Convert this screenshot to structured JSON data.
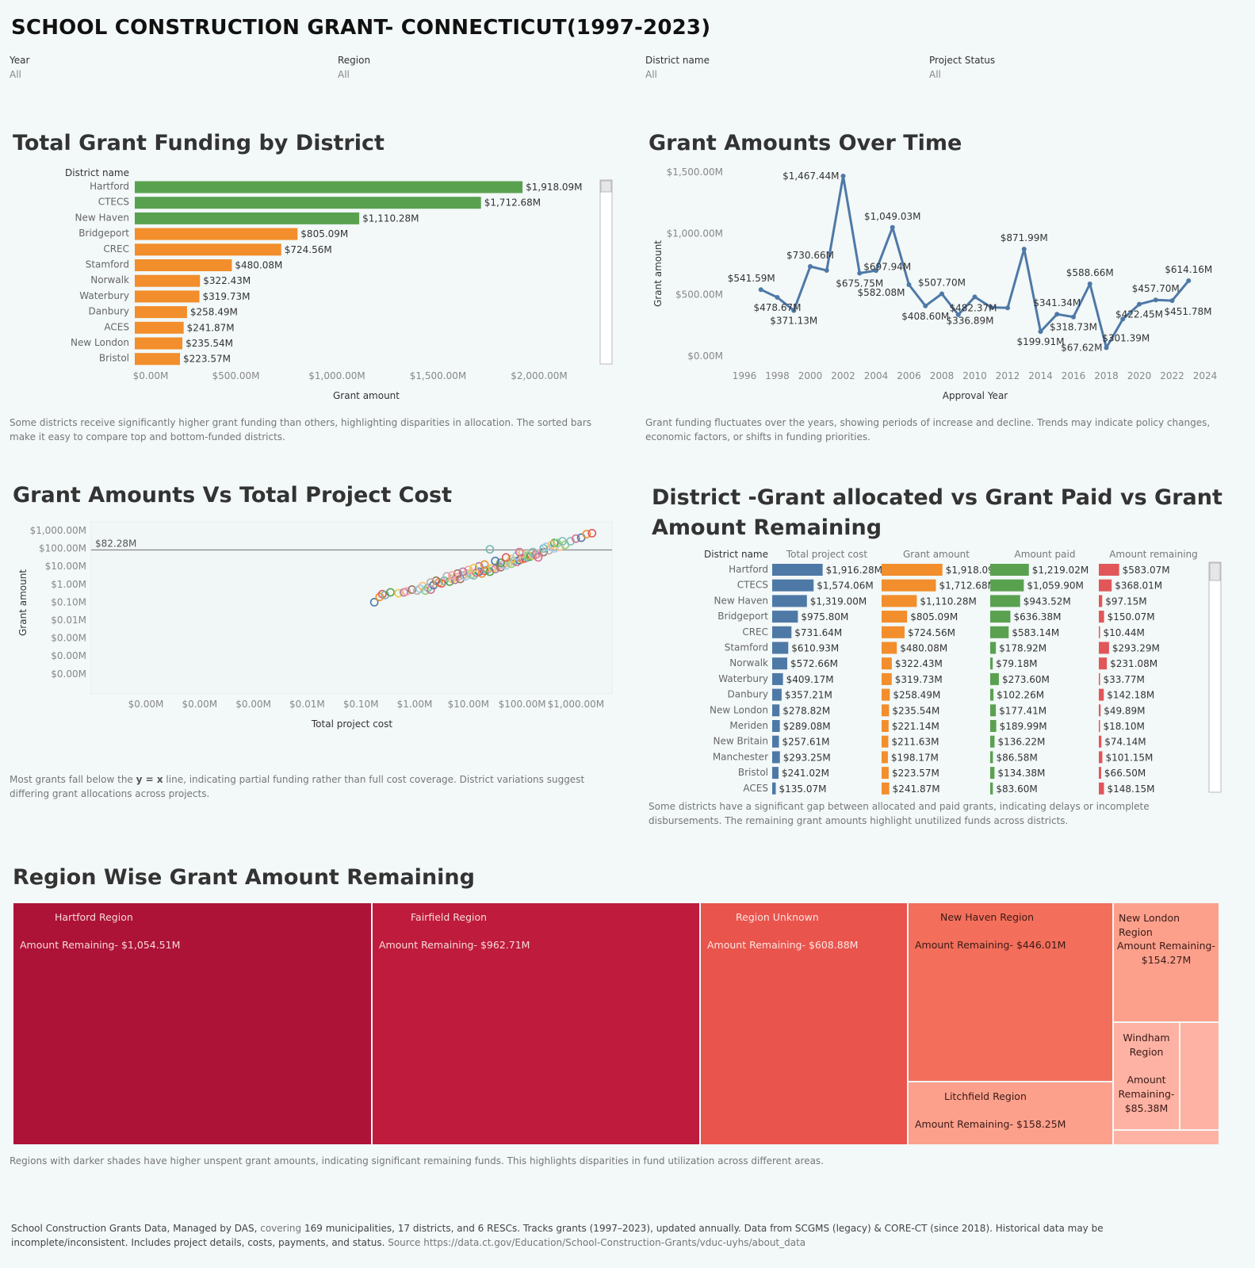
{
  "page": {
    "title": "SCHOOL CONSTRUCTION GRANT- CONNECTICUT(1997-2023)"
  },
  "filters": [
    {
      "label": "Year",
      "value": "All"
    },
    {
      "label": "Region",
      "value": "All"
    },
    {
      "label": "District name",
      "value": "All"
    },
    {
      "label": "Project Status",
      "value": "All"
    }
  ],
  "colors": {
    "green": "#59a14f",
    "orange": "#f28e2b",
    "blue": "#4e79a7",
    "red": "#e15759",
    "background": "#f3f8f8"
  },
  "sections": {
    "district_funding": {
      "title": "Total Grant Funding by District",
      "caption": "Some districts receive significantly higher grant funding than others, highlighting disparities in allocation. The sorted bars make it easy to compare top and bottom-funded districts."
    },
    "over_time": {
      "title": "Grant Amounts Over Time",
      "caption": "Grant funding fluctuates over the years, showing periods of increase and decline. Trends may indicate policy changes, economic factors, or shifts in funding priorities."
    },
    "scatter": {
      "title": "Grant Amounts Vs Total Project Cost",
      "caption_pre": "Most grants fall below the ",
      "caption_em": "y = x",
      "caption_post": " line, indicating partial funding rather than full cost coverage. District variations suggest differing grant allocations across projects."
    },
    "comparison": {
      "title": "District -Grant allocated vs Grant Paid vs Grant Amount Remaining",
      "caption": "Some districts have a significant gap between allocated and paid grants, indicating delays or incomplete disbursements. The remaining grant amounts highlight unutilized funds across districts."
    },
    "region": {
      "title": "Region Wise Grant Amount Remaining",
      "caption": "Regions with darker shades have higher unspent grant amounts, indicating significant remaining funds. This highlights disparities in fund utilization across different areas."
    }
  },
  "footer": {
    "part1": "School Construction Grants  Data, Managed by DAS,",
    "part2": " covering ",
    "part3": "169 municipalities, 17 districts, and 6 RESCs. Tracks grants (1997–2023), updated annually. Data from SCGMS (legacy) & CORE-CT (since 2018). Historical data may be incomplete/inconsistent. Includes project details, costs, payments, and status.",
    "part4": " Source https://data.ct.gov/Education/School-Construction-Grants/vduc-uyhs/about_data"
  },
  "chart_data": [
    {
      "id": "district_bar",
      "type": "bar",
      "orientation": "horizontal",
      "header": "District name",
      "categories": [
        "Hartford",
        "CTECS",
        "New Haven",
        "Bridgeport",
        "CREC",
        "Stamford",
        "Norwalk",
        "Waterbury",
        "Danbury",
        "ACES",
        "New London",
        "Bristol"
      ],
      "values": [
        1918.09,
        1712.68,
        1110.28,
        805.09,
        724.56,
        480.08,
        322.43,
        319.73,
        258.49,
        241.87,
        235.54,
        223.57
      ],
      "labels": [
        "$1,918.09M",
        "$1,712.68M",
        "$1,110.28M",
        "$805.09M",
        "$724.56M",
        "$480.08M",
        "$322.43M",
        "$319.73M",
        "$258.49M",
        "$241.87M",
        "$235.54M",
        "$223.57M"
      ],
      "bar_colors": [
        "green",
        "green",
        "green",
        "orange",
        "orange",
        "orange",
        "orange",
        "orange",
        "orange",
        "orange",
        "orange",
        "orange"
      ],
      "xlabel": "Grant amount",
      "xticks": [
        "$0.00M",
        "$500.00M",
        "$1,000.00M",
        "$1,500.00M",
        "$2,000.00M"
      ],
      "xlim": [
        0,
        2000
      ]
    },
    {
      "id": "time_line",
      "type": "line",
      "x": [
        1997,
        1998,
        1999,
        2000,
        2001,
        2002,
        2003,
        2004,
        2005,
        2006,
        2007,
        2008,
        2009,
        2010,
        2011,
        2012,
        2013,
        2014,
        2015,
        2016,
        2017,
        2018,
        2019,
        2020,
        2021,
        2022,
        2023
      ],
      "y": [
        541.59,
        478.67,
        371.13,
        730.66,
        697.94,
        1467.44,
        675.75,
        697.0,
        1049.03,
        582.08,
        408.6,
        507.7,
        336.89,
        482.37,
        397.0,
        393.0,
        871.99,
        199.91,
        341.34,
        318.73,
        588.66,
        67.62,
        301.39,
        422.45,
        457.7,
        451.78,
        614.16
      ],
      "point_labels": [
        {
          "x": 1997,
          "text": "$541.59M",
          "pos": "above-left"
        },
        {
          "x": 1998,
          "text": "$478.67M",
          "pos": "below"
        },
        {
          "x": 1999,
          "text": "$371.13M",
          "pos": "below"
        },
        {
          "x": 2000,
          "text": "$730.66M",
          "pos": "above"
        },
        {
          "x": 2002,
          "text": "$1,467.44M",
          "pos": "left"
        },
        {
          "x": 2003,
          "text": "$697.94M",
          "pos": "right"
        },
        {
          "x": 2003,
          "text": "$675.75M",
          "pos": "below"
        },
        {
          "x": 2005,
          "text": "$1,049.03M",
          "pos": "above"
        },
        {
          "x": 2006,
          "text": "$582.08M",
          "pos": "left-below"
        },
        {
          "x": 2007,
          "text": "$408.60M",
          "pos": "below"
        },
        {
          "x": 2008,
          "text": "$507.70M",
          "pos": "above"
        },
        {
          "x": 2010,
          "text": "$482.37M",
          "pos": "below-left"
        },
        {
          "x": 2010,
          "text": "$336.89M",
          "pos": "below2"
        },
        {
          "x": 2013,
          "text": "$871.99M",
          "pos": "above"
        },
        {
          "x": 2014,
          "text": "$199.91M",
          "pos": "below"
        },
        {
          "x": 2015,
          "text": "$341.34M",
          "pos": "above"
        },
        {
          "x": 2016,
          "text": "$318.73M",
          "pos": "below"
        },
        {
          "x": 2017,
          "text": "$588.66M",
          "pos": "above"
        },
        {
          "x": 2018,
          "text": "$67.62M",
          "pos": "left"
        },
        {
          "x": 2019,
          "text": "$301.39M",
          "pos": "right-below"
        },
        {
          "x": 2020,
          "text": "$422.45M",
          "pos": "below"
        },
        {
          "x": 2021,
          "text": "$457.70M",
          "pos": "above"
        },
        {
          "x": 2022,
          "text": "$451.78M",
          "pos": "below-right"
        },
        {
          "x": 2023,
          "text": "$614.16M",
          "pos": "above"
        }
      ],
      "xlabel": "Approval Year",
      "ylabel": "Grant amount",
      "yticks": [
        "$0.00M",
        "$500.00M",
        "$1,000.00M",
        "$1,500.00M"
      ],
      "ylim": [
        0,
        1500
      ],
      "xticks": [
        1996,
        1998,
        2000,
        2002,
        2004,
        2006,
        2008,
        2010,
        2012,
        2014,
        2016,
        2018,
        2020,
        2022,
        2024
      ],
      "xlim": [
        1996,
        2024
      ]
    },
    {
      "id": "scatter",
      "type": "scatter",
      "scale": "log",
      "xlabel": "Total project cost",
      "ylabel": "Grant amount",
      "xticks": [
        "$0.00M",
        "$0.00M",
        "$0.00M",
        "$0.01M",
        "$0.10M",
        "$1.00M",
        "$10.00M",
        "$100.00M",
        "$1,000.00M"
      ],
      "yticks": [
        "$1,000.00M",
        "$100.00M",
        "$10.00M",
        "$1.00M",
        "$0.10M",
        "$0.01M",
        "$0.00M",
        "$0.00M",
        "$0.00M"
      ],
      "reference_line": {
        "value": 82.28,
        "label": "$82.28M"
      },
      "points_log10": [
        [
          -0.75,
          -1.0
        ],
        [
          -0.65,
          -0.7
        ],
        [
          -0.6,
          -0.55
        ],
        [
          -0.55,
          -0.6
        ],
        [
          -0.45,
          -0.45
        ],
        [
          -0.3,
          -0.5
        ],
        [
          -0.2,
          -0.45
        ],
        [
          -0.15,
          -0.4
        ],
        [
          -0.05,
          -0.3
        ],
        [
          0.05,
          -0.35
        ],
        [
          0.1,
          -0.25
        ],
        [
          0.15,
          -0.1
        ],
        [
          0.2,
          -0.35
        ],
        [
          0.25,
          -0.2
        ],
        [
          0.3,
          -0.3
        ],
        [
          0.35,
          -0.05
        ],
        [
          0.45,
          0.1
        ],
        [
          0.5,
          0.05
        ],
        [
          0.55,
          0.2
        ],
        [
          0.65,
          0.15
        ],
        [
          0.7,
          0.3
        ],
        [
          0.75,
          0.25
        ],
        [
          0.8,
          0.4
        ],
        [
          0.85,
          0.3
        ],
        [
          0.9,
          0.5
        ],
        [
          0.95,
          0.45
        ],
        [
          1.0,
          0.6
        ],
        [
          1.05,
          0.55
        ],
        [
          1.1,
          0.5
        ],
        [
          1.15,
          0.65
        ],
        [
          1.2,
          0.7
        ],
        [
          1.25,
          0.6
        ],
        [
          1.3,
          0.75
        ],
        [
          1.35,
          0.8
        ],
        [
          1.4,
          0.7
        ],
        [
          1.45,
          0.9
        ],
        [
          1.5,
          0.85
        ],
        [
          1.55,
          1.0
        ],
        [
          1.6,
          0.95
        ],
        [
          1.65,
          1.1
        ],
        [
          1.7,
          1.05
        ],
        [
          1.75,
          1.2
        ],
        [
          1.8,
          1.15
        ],
        [
          1.85,
          1.3
        ],
        [
          1.9,
          1.25
        ],
        [
          1.95,
          1.35
        ],
        [
          2.0,
          1.4
        ],
        [
          2.05,
          1.45
        ],
        [
          2.1,
          1.5
        ],
        [
          2.15,
          1.55
        ],
        [
          2.2,
          1.6
        ],
        [
          2.25,
          1.65
        ],
        [
          2.3,
          1.7
        ],
        [
          2.4,
          1.8
        ],
        [
          2.5,
          1.9
        ],
        [
          2.6,
          2.0
        ],
        [
          2.7,
          2.1
        ],
        [
          2.8,
          2.2
        ],
        [
          2.9,
          2.4
        ],
        [
          3.0,
          2.55
        ],
        [
          3.1,
          2.6
        ],
        [
          3.2,
          2.8
        ],
        [
          3.3,
          2.85
        ],
        [
          1.4,
          1.95
        ],
        [
          1.6,
          1.2
        ],
        [
          1.8,
          1.4
        ],
        [
          1.2,
          1.0
        ],
        [
          1.0,
          0.8
        ],
        [
          0.8,
          0.6
        ],
        [
          0.6,
          0.45
        ],
        [
          1.9,
          1.6
        ],
        [
          2.0,
          1.7
        ],
        [
          2.1,
          1.6
        ],
        [
          2.2,
          1.8
        ],
        [
          2.3,
          1.5
        ],
        [
          1.5,
          1.3
        ],
        [
          1.3,
          1.1
        ],
        [
          1.7,
          1.5
        ],
        [
          2.4,
          2.0
        ],
        [
          2.6,
          2.3
        ],
        [
          1.1,
          0.9
        ],
        [
          0.9,
          0.7
        ],
        [
          0.7,
          0.5
        ],
        [
          0.4,
          0.2
        ],
        [
          0.3,
          0.1
        ],
        [
          2.45,
          2.1
        ],
        [
          2.55,
          2.2
        ],
        [
          2.65,
          2.3
        ],
        [
          2.75,
          2.4
        ],
        [
          1.95,
          1.8
        ]
      ]
    },
    {
      "id": "comparison_bars",
      "type": "bar",
      "orientation": "horizontal",
      "header": "District name",
      "categories": [
        "Hartford",
        "CTECS",
        "New Haven",
        "Bridgeport",
        "CREC",
        "Stamford",
        "Norwalk",
        "Waterbury",
        "Danbury",
        "New London",
        "Meriden",
        "New Britain",
        "Manchester",
        "Bristol",
        "ACES"
      ],
      "series": [
        {
          "name": "Total project cost",
          "color": "blue",
          "values": [
            1916.28,
            1574.06,
            1319.0,
            975.8,
            731.64,
            610.93,
            572.66,
            409.17,
            357.21,
            278.82,
            289.08,
            257.61,
            293.25,
            241.02,
            135.07
          ],
          "labels": [
            "$1,916.28M",
            "$1,574.06M",
            "$1,319.00M",
            "$975.80M",
            "$731.64M",
            "$610.93M",
            "$572.66M",
            "$409.17M",
            "$357.21M",
            "$278.82M",
            "$289.08M",
            "$257.61M",
            "$293.25M",
            "$241.02M",
            "$135.07M"
          ]
        },
        {
          "name": "Grant amount",
          "color": "orange",
          "values": [
            1918.09,
            1712.68,
            1110.28,
            805.09,
            724.56,
            480.08,
            322.43,
            319.73,
            258.49,
            235.54,
            221.14,
            211.63,
            198.17,
            223.57,
            241.87
          ],
          "labels": [
            "$1,918.09M",
            "$1,712.68M",
            "$1,110.28M",
            "$805.09M",
            "$724.56M",
            "$480.08M",
            "$322.43M",
            "$319.73M",
            "$258.49M",
            "$235.54M",
            "$221.14M",
            "$211.63M",
            "$198.17M",
            "$223.57M",
            "$241.87M"
          ]
        },
        {
          "name": "Amount paid",
          "color": "green",
          "values": [
            1219.02,
            1059.9,
            943.52,
            636.38,
            583.14,
            178.92,
            79.18,
            273.6,
            102.26,
            177.41,
            189.99,
            136.22,
            86.58,
            134.38,
            83.6
          ],
          "labels": [
            "$1,219.02M",
            "$1,059.90M",
            "$943.52M",
            "$636.38M",
            "$583.14M",
            "$178.92M",
            "$79.18M",
            "$273.60M",
            "$102.26M",
            "$177.41M",
            "$189.99M",
            "$136.22M",
            "$86.58M",
            "$134.38M",
            "$83.60M"
          ]
        },
        {
          "name": "Amount remaining",
          "color": "red",
          "values": [
            583.07,
            368.01,
            97.15,
            150.07,
            10.44,
            293.29,
            231.08,
            33.77,
            142.18,
            49.89,
            18.1,
            74.14,
            101.15,
            66.5,
            148.15
          ],
          "labels": [
            "$583.07M",
            "$368.01M",
            "$97.15M",
            "$150.07M",
            "$10.44M",
            "$293.29M",
            "$231.08M",
            "$33.77M",
            "$142.18M",
            "$49.89M",
            "$18.10M",
            "$74.14M",
            "$101.15M",
            "$66.50M",
            "$148.15M"
          ]
        }
      ]
    },
    {
      "id": "region_treemap",
      "type": "treemap",
      "label_prefix": "Amount Remaining-",
      "regions": [
        {
          "name": "Hartford Region",
          "value": "$1,054.51M",
          "amount": 1054.51,
          "color": "#ad1237",
          "text_color": "#f6dada"
        },
        {
          "name": "Fairfield Region",
          "value": "$962.71M",
          "amount": 962.71,
          "color": "#bf1b3c",
          "text_color": "#f6dada"
        },
        {
          "name": "Region Unknown",
          "value": "$608.88M",
          "amount": 608.88,
          "color": "#e9544d",
          "text_color": "#fde5e1"
        },
        {
          "name": "New Haven Region",
          "value": "$446.01M",
          "amount": 446.01,
          "color": "#f36f5b",
          "text_color": "#3a1a16"
        },
        {
          "name": "Litchfield Region",
          "value": "$158.25M",
          "amount": 158.25,
          "color": "#fca08c",
          "text_color": "#3a1a16"
        },
        {
          "name": "New London Region",
          "value": "$154.27M",
          "amount": 154.27,
          "color": "#fca08c",
          "text_color": "#3a1a16"
        },
        {
          "name": "Windham Region",
          "value": "$85.38M",
          "amount": 85.38,
          "color": "#fdb2a3",
          "text_color": "#3a1a16"
        }
      ]
    }
  ]
}
